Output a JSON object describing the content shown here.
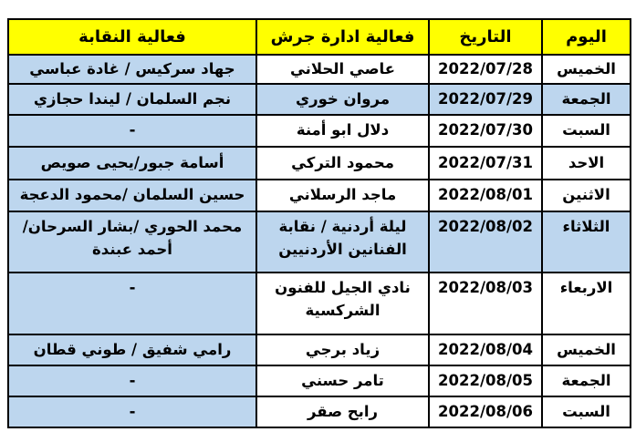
{
  "table": {
    "columns": [
      {
        "key": "day",
        "label": "اليوم"
      },
      {
        "key": "date",
        "label": "التاريخ"
      },
      {
        "key": "jerash",
        "label": "فعالية ادارة جرش"
      },
      {
        "key": "union",
        "label": "فعالية النقابة"
      }
    ],
    "rows": [
      {
        "day": "الخميس",
        "date": "2022/07/28",
        "jerash": "عاصي الحلاني",
        "union": "جهاد سركيس / غادة عباسي",
        "highlight": false
      },
      {
        "day": "الجمعة",
        "date": "2022/07/29",
        "jerash": "مروان خوري",
        "union": "نجم السلمان / ليندا حجازي",
        "highlight": true
      },
      {
        "day": "السبت",
        "date": "2022/07/30",
        "jerash": "دلال ابو أمنة",
        "union": "-",
        "highlight": false
      },
      {
        "day": "الاحد",
        "date": "2022/07/31",
        "jerash": "محمود التركي",
        "union": "أسامة جبور/يحيى صويص",
        "highlight": false
      },
      {
        "day": "الاثنين",
        "date": "2022/08/01",
        "jerash": "ماجد الرسلاني",
        "union": "حسين السلمان /محمود الدعجة",
        "highlight": false
      },
      {
        "day": "الثلاثاء",
        "date": "2022/08/02",
        "jerash": "ليلة أردنية / نقابة الفنانين الأردنيين",
        "union": "محمد الحوري /بشار السرحان/أحمد عبندة",
        "highlight": true
      },
      {
        "day": "الاربعاء",
        "date": "2022/08/03",
        "jerash": "نادي الجيل للفنون الشركسية",
        "union": "-",
        "highlight": false
      },
      {
        "day": "الخميس",
        "date": "2022/08/04",
        "jerash": "زياد برجي",
        "union": "رامي شفيق / طوني قطان",
        "highlight": false
      },
      {
        "day": "الجمعة",
        "date": "2022/08/05",
        "jerash": "تامر حسني",
        "union": "-",
        "highlight": false
      },
      {
        "day": "السبت",
        "date": "2022/08/06",
        "jerash": "رابح صقر",
        "union": "-",
        "highlight": false
      }
    ],
    "colors": {
      "header_bg": "#FFFF00",
      "highlight_bg": "#BDD6EE",
      "border": "#000000",
      "text": "#000000"
    }
  }
}
